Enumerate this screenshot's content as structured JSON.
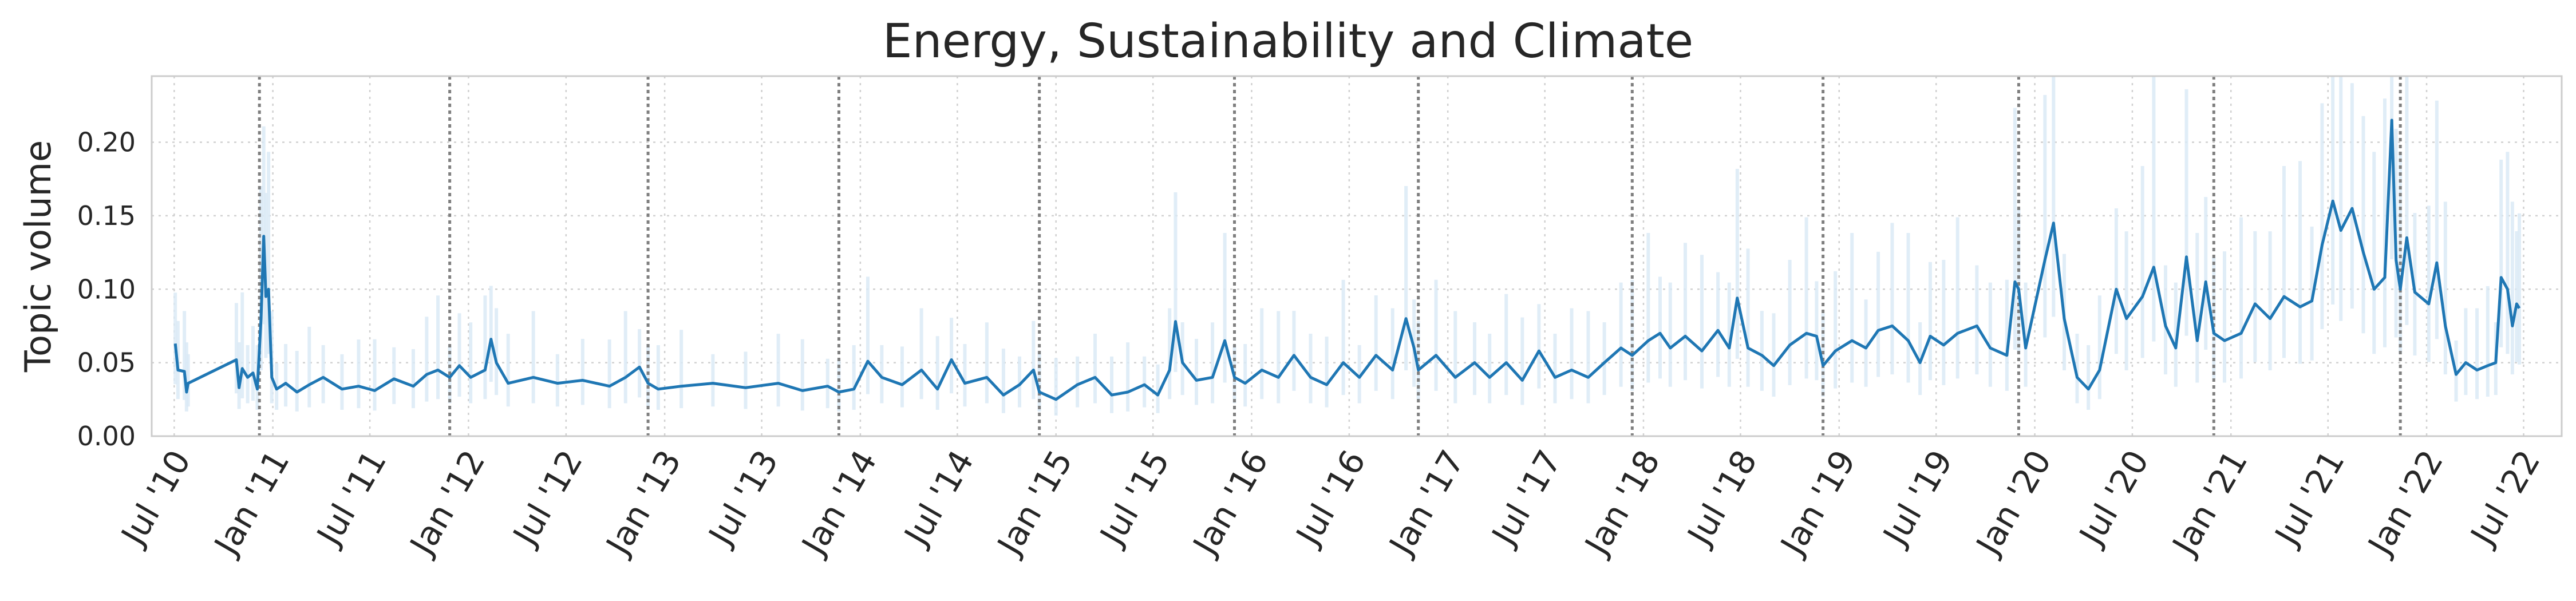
{
  "chart_data": {
    "type": "line",
    "title": "Energy, Sustainability and Climate",
    "ylabel": "Topic volume",
    "xlabel": "",
    "ylim": [
      0.0,
      0.245
    ],
    "yticks": [
      "0.00",
      "0.05",
      "0.10",
      "0.15",
      "0.20"
    ],
    "ytick_values": [
      0.0,
      0.05,
      0.1,
      0.15,
      0.2
    ],
    "xlim": [
      "2010-05-20",
      "2022-09-10"
    ],
    "xticks": [
      {
        "date": "2010-07-01",
        "label": "Jul '10"
      },
      {
        "date": "2011-01-01",
        "label": "Jan '11"
      },
      {
        "date": "2011-07-01",
        "label": "Jul '11"
      },
      {
        "date": "2012-01-01",
        "label": "Jan '12"
      },
      {
        "date": "2012-07-01",
        "label": "Jul '12"
      },
      {
        "date": "2013-01-01",
        "label": "Jan '13"
      },
      {
        "date": "2013-07-01",
        "label": "Jul '13"
      },
      {
        "date": "2014-01-01",
        "label": "Jan '14"
      },
      {
        "date": "2014-07-01",
        "label": "Jul '14"
      },
      {
        "date": "2015-01-01",
        "label": "Jan '15"
      },
      {
        "date": "2015-07-01",
        "label": "Jul '15"
      },
      {
        "date": "2016-01-01",
        "label": "Jan '16"
      },
      {
        "date": "2016-07-01",
        "label": "Jul '16"
      },
      {
        "date": "2017-01-01",
        "label": "Jan '17"
      },
      {
        "date": "2017-07-01",
        "label": "Jul '17"
      },
      {
        "date": "2018-01-01",
        "label": "Jan '18"
      },
      {
        "date": "2018-07-01",
        "label": "Jul '18"
      },
      {
        "date": "2019-01-01",
        "label": "Jan '19"
      },
      {
        "date": "2019-07-01",
        "label": "Jul '19"
      },
      {
        "date": "2020-01-01",
        "label": "Jan '20"
      },
      {
        "date": "2020-07-01",
        "label": "Jul '20"
      },
      {
        "date": "2021-01-01",
        "label": "Jan '21"
      },
      {
        "date": "2021-07-01",
        "label": "Jul '21"
      },
      {
        "date": "2022-01-01",
        "label": "Jan '22"
      },
      {
        "date": "2022-07-01",
        "label": "Jul '22"
      }
    ],
    "vlines": [
      "2010-12-07",
      "2011-11-27",
      "2012-12-01",
      "2013-11-22",
      "2014-12-01",
      "2015-11-30",
      "2016-11-07",
      "2017-12-11",
      "2018-12-02",
      "2019-12-02",
      "2020-11-30",
      "2021-11-13"
    ],
    "grid": true,
    "colors": {
      "line": "#1f77b4",
      "band": "#dbeaf6",
      "vline": "#7f7f7f",
      "grid": "#d0d0d0",
      "axes": "#cccccc"
    },
    "series": [
      {
        "values": [
          [
            "2010-07-03",
            0.063
          ],
          [
            "2010-07-08",
            0.045
          ],
          [
            "2010-07-20",
            0.044
          ],
          [
            "2010-07-24",
            0.03
          ],
          [
            "2010-07-27",
            0.036
          ],
          [
            "2010-10-25",
            0.052
          ],
          [
            "2010-10-30",
            0.033
          ],
          [
            "2010-11-05",
            0.046
          ],
          [
            "2010-11-15",
            0.04
          ],
          [
            "2010-11-25",
            0.043
          ],
          [
            "2010-12-03",
            0.032
          ],
          [
            "2010-12-10",
            0.08
          ],
          [
            "2010-12-15",
            0.136
          ],
          [
            "2010-12-19",
            0.095
          ],
          [
            "2010-12-24",
            0.1
          ],
          [
            "2010-12-30",
            0.04
          ],
          [
            "2011-01-08",
            0.032
          ],
          [
            "2011-01-25",
            0.036
          ],
          [
            "2011-02-15",
            0.03
          ],
          [
            "2011-03-10",
            0.035
          ],
          [
            "2011-04-05",
            0.04
          ],
          [
            "2011-05-10",
            0.032
          ],
          [
            "2011-06-10",
            0.034
          ],
          [
            "2011-07-10",
            0.031
          ],
          [
            "2011-08-15",
            0.039
          ],
          [
            "2011-09-20",
            0.034
          ],
          [
            "2011-10-15",
            0.042
          ],
          [
            "2011-11-05",
            0.045
          ],
          [
            "2011-11-27",
            0.04
          ],
          [
            "2011-12-15",
            0.048
          ],
          [
            "2012-01-05",
            0.04
          ],
          [
            "2012-02-01",
            0.045
          ],
          [
            "2012-02-12",
            0.066
          ],
          [
            "2012-02-22",
            0.05
          ],
          [
            "2012-03-15",
            0.036
          ],
          [
            "2012-05-01",
            0.04
          ],
          [
            "2012-06-15",
            0.036
          ],
          [
            "2012-08-01",
            0.038
          ],
          [
            "2012-09-20",
            0.034
          ],
          [
            "2012-10-20",
            0.04
          ],
          [
            "2012-11-15",
            0.047
          ],
          [
            "2012-12-01",
            0.036
          ],
          [
            "2012-12-20",
            0.032
          ],
          [
            "2013-02-01",
            0.034
          ],
          [
            "2013-04-01",
            0.036
          ],
          [
            "2013-06-01",
            0.033
          ],
          [
            "2013-08-01",
            0.036
          ],
          [
            "2013-09-15",
            0.031
          ],
          [
            "2013-11-01",
            0.034
          ],
          [
            "2013-11-22",
            0.03
          ],
          [
            "2013-12-20",
            0.032
          ],
          [
            "2014-01-15",
            0.051
          ],
          [
            "2014-02-10",
            0.04
          ],
          [
            "2014-03-20",
            0.035
          ],
          [
            "2014-04-25",
            0.045
          ],
          [
            "2014-05-25",
            0.032
          ],
          [
            "2014-06-20",
            0.052
          ],
          [
            "2014-07-15",
            0.036
          ],
          [
            "2014-08-25",
            0.04
          ],
          [
            "2014-09-25",
            0.028
          ],
          [
            "2014-10-25",
            0.035
          ],
          [
            "2014-11-20",
            0.045
          ],
          [
            "2014-12-01",
            0.03
          ],
          [
            "2015-01-01",
            0.025
          ],
          [
            "2015-02-10",
            0.035
          ],
          [
            "2015-03-15",
            0.04
          ],
          [
            "2015-04-15",
            0.028
          ],
          [
            "2015-05-15",
            0.03
          ],
          [
            "2015-06-15",
            0.035
          ],
          [
            "2015-07-10",
            0.028
          ],
          [
            "2015-08-01",
            0.045
          ],
          [
            "2015-08-12",
            0.078
          ],
          [
            "2015-08-25",
            0.05
          ],
          [
            "2015-09-20",
            0.038
          ],
          [
            "2015-10-20",
            0.04
          ],
          [
            "2015-11-12",
            0.065
          ],
          [
            "2015-11-30",
            0.04
          ],
          [
            "2015-12-20",
            0.036
          ],
          [
            "2016-01-20",
            0.045
          ],
          [
            "2016-02-20",
            0.04
          ],
          [
            "2016-03-20",
            0.055
          ],
          [
            "2016-04-20",
            0.04
          ],
          [
            "2016-05-20",
            0.035
          ],
          [
            "2016-06-20",
            0.05
          ],
          [
            "2016-07-20",
            0.04
          ],
          [
            "2016-08-20",
            0.055
          ],
          [
            "2016-09-20",
            0.045
          ],
          [
            "2016-10-15",
            0.08
          ],
          [
            "2016-10-30",
            0.06
          ],
          [
            "2016-11-07",
            0.045
          ],
          [
            "2016-12-10",
            0.055
          ],
          [
            "2017-01-15",
            0.04
          ],
          [
            "2017-02-20",
            0.05
          ],
          [
            "2017-03-20",
            0.04
          ],
          [
            "2017-04-20",
            0.05
          ],
          [
            "2017-05-20",
            0.038
          ],
          [
            "2017-06-20",
            0.058
          ],
          [
            "2017-07-20",
            0.04
          ],
          [
            "2017-08-20",
            0.045
          ],
          [
            "2017-09-20",
            0.04
          ],
          [
            "2017-10-20",
            0.05
          ],
          [
            "2017-11-20",
            0.06
          ],
          [
            "2017-12-11",
            0.055
          ],
          [
            "2018-01-10",
            0.065
          ],
          [
            "2018-02-01",
            0.07
          ],
          [
            "2018-02-20",
            0.06
          ],
          [
            "2018-03-20",
            0.068
          ],
          [
            "2018-04-20",
            0.058
          ],
          [
            "2018-05-20",
            0.072
          ],
          [
            "2018-06-10",
            0.06
          ],
          [
            "2018-06-25",
            0.094
          ],
          [
            "2018-07-15",
            0.06
          ],
          [
            "2018-08-10",
            0.055
          ],
          [
            "2018-09-01",
            0.048
          ],
          [
            "2018-10-01",
            0.062
          ],
          [
            "2018-11-01",
            0.07
          ],
          [
            "2018-11-20",
            0.068
          ],
          [
            "2018-12-02",
            0.048
          ],
          [
            "2018-12-25",
            0.058
          ],
          [
            "2019-01-25",
            0.065
          ],
          [
            "2019-02-20",
            0.06
          ],
          [
            "2019-03-15",
            0.072
          ],
          [
            "2019-04-10",
            0.075
          ],
          [
            "2019-05-10",
            0.065
          ],
          [
            "2019-06-01",
            0.05
          ],
          [
            "2019-06-20",
            0.068
          ],
          [
            "2019-07-15",
            0.062
          ],
          [
            "2019-08-10",
            0.07
          ],
          [
            "2019-09-15",
            0.075
          ],
          [
            "2019-10-10",
            0.06
          ],
          [
            "2019-11-10",
            0.055
          ],
          [
            "2019-11-25",
            0.105
          ],
          [
            "2019-12-02",
            0.1
          ],
          [
            "2019-12-15",
            0.06
          ],
          [
            "2020-01-20",
            0.12
          ],
          [
            "2020-02-05",
            0.145
          ],
          [
            "2020-02-25",
            0.08
          ],
          [
            "2020-03-20",
            0.04
          ],
          [
            "2020-04-10",
            0.032
          ],
          [
            "2020-05-01",
            0.045
          ],
          [
            "2020-06-01",
            0.1
          ],
          [
            "2020-06-20",
            0.08
          ],
          [
            "2020-07-20",
            0.095
          ],
          [
            "2020-08-10",
            0.115
          ],
          [
            "2020-09-01",
            0.075
          ],
          [
            "2020-09-20",
            0.06
          ],
          [
            "2020-10-10",
            0.122
          ],
          [
            "2020-10-30",
            0.065
          ],
          [
            "2020-11-15",
            0.105
          ],
          [
            "2020-11-30",
            0.07
          ],
          [
            "2020-12-20",
            0.065
          ],
          [
            "2021-01-20",
            0.07
          ],
          [
            "2021-02-15",
            0.09
          ],
          [
            "2021-03-15",
            0.08
          ],
          [
            "2021-04-10",
            0.095
          ],
          [
            "2021-05-10",
            0.088
          ],
          [
            "2021-06-01",
            0.092
          ],
          [
            "2021-06-20",
            0.13
          ],
          [
            "2021-07-10",
            0.16
          ],
          [
            "2021-07-25",
            0.14
          ],
          [
            "2021-08-15",
            0.155
          ],
          [
            "2021-09-05",
            0.125
          ],
          [
            "2021-09-25",
            0.1
          ],
          [
            "2021-10-15",
            0.108
          ],
          [
            "2021-10-28",
            0.215
          ],
          [
            "2021-11-05",
            0.12
          ],
          [
            "2021-11-13",
            0.1
          ],
          [
            "2021-11-25",
            0.135
          ],
          [
            "2021-12-10",
            0.098
          ],
          [
            "2022-01-05",
            0.09
          ],
          [
            "2022-01-20",
            0.118
          ],
          [
            "2022-02-05",
            0.075
          ],
          [
            "2022-02-25",
            0.042
          ],
          [
            "2022-03-15",
            0.05
          ],
          [
            "2022-04-05",
            0.045
          ],
          [
            "2022-04-25",
            0.048
          ],
          [
            "2022-05-10",
            0.05
          ],
          [
            "2022-05-20",
            0.108
          ],
          [
            "2022-06-01",
            0.1
          ],
          [
            "2022-06-10",
            0.075
          ],
          [
            "2022-06-18",
            0.09
          ],
          [
            "2022-06-23",
            0.087
          ]
        ]
      }
    ]
  }
}
